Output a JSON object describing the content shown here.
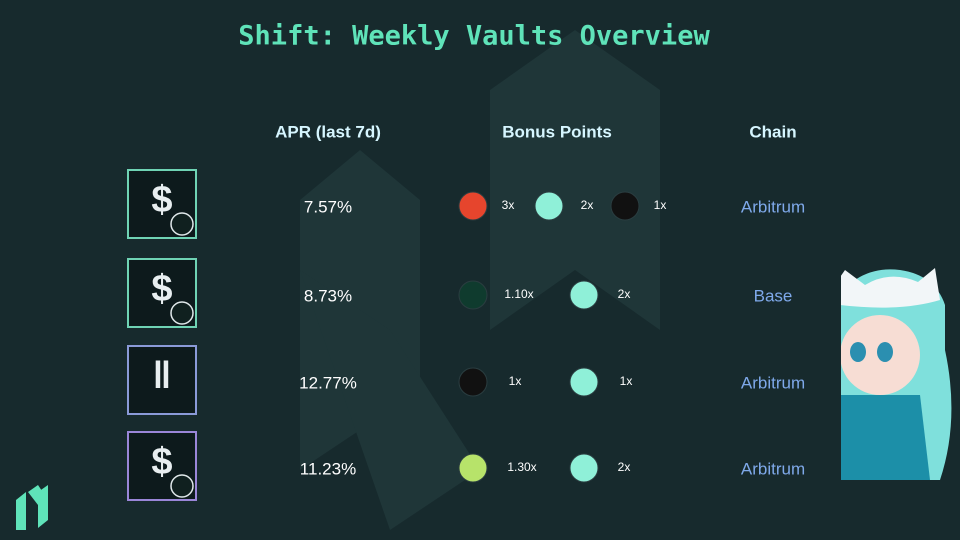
{
  "header": {
    "title": "Shift: Weekly Vaults Overview"
  },
  "table": {
    "columns": [
      "APR (last 7d)",
      "Bonus Points",
      "Chain"
    ],
    "rows": [
      {
        "apr": "7.57%",
        "bonus": [
          "3x",
          "2x",
          "1x"
        ],
        "chain": "Arbitrum"
      },
      {
        "apr": "8.73%",
        "bonus": [
          "1.10x",
          "2x"
        ],
        "chain": "Base"
      },
      {
        "apr": "12.77%",
        "bonus": [
          "1x",
          "1x"
        ],
        "chain": "Arbitrum"
      },
      {
        "apr": "11.23%",
        "bonus": [
          "1.30x",
          "2x"
        ],
        "chain": "Arbitrum"
      }
    ]
  }
}
